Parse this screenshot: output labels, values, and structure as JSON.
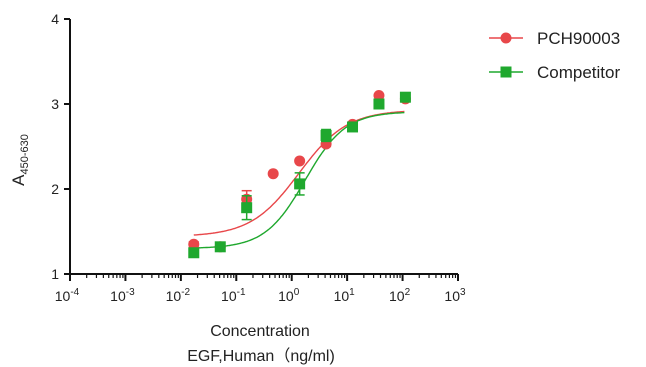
{
  "chart_data": {
    "type": "scatter",
    "xscale": "log",
    "xlim": [
      0.0001,
      1000
    ],
    "ylim": [
      1,
      4
    ],
    "xticks": [
      {
        "mant": "10",
        "exp": "-4"
      },
      {
        "mant": "10",
        "exp": "-3"
      },
      {
        "mant": "10",
        "exp": "-2"
      },
      {
        "mant": "10",
        "exp": "-1"
      },
      {
        "mant": "10",
        "exp": "0"
      },
      {
        "mant": "10",
        "exp": "1"
      },
      {
        "mant": "10",
        "exp": "2"
      },
      {
        "mant": "10",
        "exp": "3"
      }
    ],
    "yticks": [
      "1",
      "2",
      "3",
      "4"
    ],
    "ylabel_main": "A",
    "ylabel_sub": "450-630",
    "xlabel_line1": "Concentration",
    "xlabel_line2": "EGF,Human（ng/ml)",
    "grid": false,
    "legend_position": "top-right",
    "series": [
      {
        "name": "PCH90003",
        "color": "#e8474a",
        "marker": "circle",
        "x": [
          0.0171,
          0.0514,
          0.154,
          0.463,
          1.39,
          4.17,
          12.5,
          37.5,
          112.5
        ],
        "y": [
          1.35,
          1.32,
          1.88,
          2.18,
          2.33,
          2.53,
          2.76,
          3.1,
          3.06
        ],
        "err": [
          0.03,
          0.03,
          0.1,
          0.0,
          0.0,
          0.03,
          0.0,
          0.0,
          0.0
        ],
        "fit": {
          "bottom": 1.44,
          "top": 2.93,
          "ec50": 1.35,
          "hill": 1.0
        }
      },
      {
        "name": "Competitor",
        "color": "#1fa82e",
        "marker": "square",
        "x": [
          0.0171,
          0.0514,
          0.154,
          0.463,
          1.39,
          4.17,
          12.5,
          37.5,
          112.5
        ],
        "y": [
          1.25,
          1.32,
          1.78,
          null,
          2.06,
          2.63,
          2.73,
          3.0,
          3.08
        ],
        "err": [
          0.04,
          0.04,
          0.14,
          0.0,
          0.13,
          0.07,
          0.04,
          0.03,
          0.03
        ],
        "fit": {
          "bottom": 1.3,
          "top": 2.91,
          "ec50": 1.75,
          "hill": 1.2
        }
      }
    ]
  }
}
